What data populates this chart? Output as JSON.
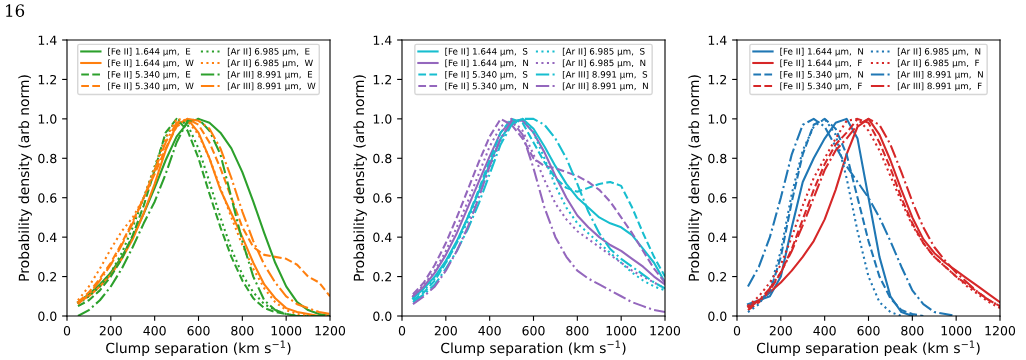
{
  "chart_data": [
    {
      "type": "line",
      "xlabel": "Clump separation (km s$^{−1}$)",
      "ylabel": "Probability density (arb norm)",
      "annotations": [
        "16"
      ],
      "xlim": [
        0,
        1200
      ],
      "ylim": [
        0,
        1.4
      ],
      "xticks": [
        0,
        200,
        400,
        600,
        800,
        1000,
        1200
      ],
      "yticks": [
        {
          "value": 0,
          "label": "0.0"
        },
        {
          "value": 0.2,
          "label": "0.2"
        },
        {
          "value": 0.4,
          "label": "0.4"
        },
        {
          "value": 0.6,
          "label": "0.6"
        },
        {
          "value": 0.8,
          "label": "0.8"
        },
        {
          "value": 1.0,
          "label": "1.0"
        },
        {
          "value": 1.2,
          "label": "1.2"
        },
        {
          "value": 1.4,
          "label": "1.4"
        }
      ],
      "legend": "top",
      "grid": false,
      "marker": "none",
      "x": [
        50,
        100,
        150,
        200,
        250,
        300,
        350,
        400,
        450,
        500,
        550,
        600,
        650,
        700,
        750,
        800,
        850,
        900,
        950,
        1000,
        1050,
        1100,
        1150,
        1200
      ],
      "series": [
        {
          "name": "[Fe II] 1.644 µm,  E",
          "color": "#2ca02c",
          "line_style": "solid",
          "values": [
            0.07,
            0.11,
            0.16,
            0.22,
            0.3,
            0.4,
            0.52,
            0.65,
            0.79,
            0.91,
            0.98,
            1.0,
            0.98,
            0.93,
            0.85,
            0.73,
            0.58,
            0.42,
            0.27,
            0.15,
            0.07,
            0.03,
            0.01,
            0.0
          ]
        },
        {
          "name": "[Fe II] 1.644 µm,  W",
          "color": "#ff7f0e",
          "line_style": "solid",
          "values": [
            0.07,
            0.1,
            0.15,
            0.21,
            0.29,
            0.39,
            0.52,
            0.67,
            0.84,
            0.97,
            1.0,
            0.93,
            0.8,
            0.64,
            0.52,
            0.4,
            0.27,
            0.16,
            0.09,
            0.04,
            0.02,
            0.01,
            0.0,
            0.0
          ]
        },
        {
          "name": "[Fe II] 5.340 µm,  E",
          "color": "#2ca02c",
          "line_style": "dashed",
          "values": [
            0.05,
            0.08,
            0.13,
            0.2,
            0.29,
            0.41,
            0.56,
            0.74,
            0.93,
            1.0,
            0.94,
            0.8,
            0.62,
            0.45,
            0.3,
            0.18,
            0.09,
            0.04,
            0.02,
            0.01,
            0.0,
            0.0,
            0.0,
            0.0
          ]
        },
        {
          "name": "[Fe II] 5.340 µm,  W",
          "color": "#ff7f0e",
          "line_style": "dashed",
          "values": [
            0.07,
            0.12,
            0.19,
            0.27,
            0.37,
            0.48,
            0.6,
            0.72,
            0.85,
            0.96,
            1.0,
            0.97,
            0.88,
            0.75,
            0.6,
            0.45,
            0.35,
            0.31,
            0.3,
            0.29,
            0.26,
            0.2,
            0.17,
            0.1
          ]
        },
        {
          "name": "[Ar II] 6.985 µm,  E",
          "color": "#2ca02c",
          "line_style": "dotted",
          "values": [
            0.06,
            0.1,
            0.15,
            0.22,
            0.32,
            0.45,
            0.6,
            0.76,
            0.91,
            1.0,
            0.97,
            0.85,
            0.68,
            0.5,
            0.34,
            0.21,
            0.12,
            0.06,
            0.03,
            0.01,
            0.0,
            0.0,
            0.0,
            0.0
          ]
        },
        {
          "name": "[Ar II] 6.985 µm,  W",
          "color": "#ff7f0e",
          "line_style": "dotted",
          "values": [
            0.08,
            0.15,
            0.24,
            0.34,
            0.43,
            0.5,
            0.6,
            0.75,
            0.9,
            1.0,
            0.99,
            0.92,
            0.8,
            0.65,
            0.5,
            0.36,
            0.24,
            0.14,
            0.07,
            0.03,
            0.01,
            0.0,
            0.0,
            0.0
          ]
        },
        {
          "name": "[Ar III] 8.991 µm,  E",
          "color": "#2ca02c",
          "line_style": "dashdot",
          "values": [
            0.0,
            0.03,
            0.08,
            0.15,
            0.24,
            0.35,
            0.47,
            0.58,
            0.72,
            0.88,
            0.99,
            1.0,
            0.94,
            0.82,
            0.6,
            0.38,
            0.2,
            0.08,
            0.03,
            0.01,
            0.0,
            0.0,
            0.0,
            0.0
          ]
        },
        {
          "name": "[Ar III] 8.991 µm,  W",
          "color": "#ff7f0e",
          "line_style": "dashdot",
          "values": [
            0.06,
            0.11,
            0.18,
            0.26,
            0.36,
            0.47,
            0.6,
            0.74,
            0.88,
            0.98,
            1.0,
            0.99,
            0.95,
            0.85,
            0.7,
            0.53,
            0.38,
            0.26,
            0.17,
            0.1,
            0.06,
            0.04,
            0.02,
            0.01
          ]
        }
      ]
    },
    {
      "type": "line",
      "xlabel": "Clump separation (km s$^{−1}$)",
      "ylabel": "Probability density (arb norm)",
      "xlim": [
        0,
        1200
      ],
      "ylim": [
        0,
        1.4
      ],
      "xticks": [
        0,
        200,
        400,
        600,
        800,
        1000,
        1200
      ],
      "yticks": [
        {
          "value": 0,
          "label": "0.0"
        },
        {
          "value": 0.2,
          "label": "0.2"
        },
        {
          "value": 0.4,
          "label": "0.4"
        },
        {
          "value": 0.6,
          "label": "0.6"
        },
        {
          "value": 0.8,
          "label": "0.8"
        },
        {
          "value": 1.0,
          "label": "1.0"
        },
        {
          "value": 1.2,
          "label": "1.2"
        },
        {
          "value": 1.4,
          "label": "1.4"
        }
      ],
      "legend": "top",
      "grid": false,
      "marker": "none",
      "x": [
        50,
        100,
        150,
        200,
        250,
        300,
        350,
        400,
        450,
        500,
        550,
        600,
        650,
        700,
        750,
        800,
        850,
        900,
        950,
        1000,
        1050,
        1100,
        1150,
        1200
      ],
      "series": [
        {
          "name": "[Fe II] 1.644 µm,  S",
          "color": "#17becf",
          "line_style": "solid",
          "values": [
            0.09,
            0.14,
            0.2,
            0.28,
            0.38,
            0.5,
            0.63,
            0.77,
            0.9,
            0.98,
            1.0,
            0.95,
            0.86,
            0.76,
            0.67,
            0.6,
            0.55,
            0.5,
            0.47,
            0.45,
            0.41,
            0.34,
            0.27,
            0.17
          ]
        },
        {
          "name": "[Fe II] 1.644 µm,  N",
          "color": "#9467bd",
          "line_style": "solid",
          "values": [
            0.1,
            0.15,
            0.22,
            0.31,
            0.42,
            0.55,
            0.68,
            0.81,
            0.93,
            0.99,
            0.99,
            0.93,
            0.83,
            0.71,
            0.6,
            0.51,
            0.45,
            0.4,
            0.36,
            0.33,
            0.29,
            0.25,
            0.2,
            0.16
          ]
        },
        {
          "name": "[Fe II] 5.340 µm,  S",
          "color": "#17becf",
          "line_style": "dashed",
          "values": [
            0.08,
            0.12,
            0.18,
            0.27,
            0.37,
            0.5,
            0.64,
            0.79,
            0.93,
            1.0,
            0.98,
            0.88,
            0.78,
            0.7,
            0.65,
            0.63,
            0.65,
            0.67,
            0.68,
            0.66,
            0.55,
            0.42,
            0.3,
            0.2
          ]
        },
        {
          "name": "[Fe II] 5.340 µm,  N",
          "color": "#9467bd",
          "line_style": "dashed",
          "values": [
            0.11,
            0.17,
            0.26,
            0.37,
            0.5,
            0.64,
            0.78,
            0.91,
            1.0,
            0.97,
            0.9,
            0.8,
            0.76,
            0.75,
            0.73,
            0.71,
            0.68,
            0.64,
            0.58,
            0.5,
            0.42,
            0.33,
            0.24,
            0.17
          ]
        },
        {
          "name": "[Ar II] 6.985 µm,  S",
          "color": "#17becf",
          "line_style": "dotted",
          "values": [
            0.09,
            0.13,
            0.19,
            0.27,
            0.37,
            0.48,
            0.61,
            0.75,
            0.89,
            0.98,
            1.0,
            0.93,
            0.8,
            0.66,
            0.55,
            0.47,
            0.42,
            0.37,
            0.32,
            0.27,
            0.22,
            0.18,
            0.15,
            0.13
          ]
        },
        {
          "name": "[Ar II] 6.985 µm,  N",
          "color": "#9467bd",
          "line_style": "dotted",
          "values": [
            0.1,
            0.16,
            0.23,
            0.33,
            0.45,
            0.58,
            0.72,
            0.86,
            0.96,
            1.0,
            0.94,
            0.82,
            0.69,
            0.57,
            0.49,
            0.43,
            0.39,
            0.35,
            0.31,
            0.27,
            0.23,
            0.2,
            0.17,
            0.14
          ]
        },
        {
          "name": "[Ar III] 8.991 µm,  S",
          "color": "#17becf",
          "line_style": "dashdot",
          "values": [
            0.07,
            0.11,
            0.16,
            0.24,
            0.33,
            0.44,
            0.57,
            0.72,
            0.87,
            0.97,
            1.0,
            1.0,
            0.97,
            0.9,
            0.8,
            0.67,
            0.53,
            0.42,
            0.34,
            0.29,
            0.25,
            0.21,
            0.17,
            0.14
          ]
        },
        {
          "name": "[Ar III] 8.991 µm,  N",
          "color": "#9467bd",
          "line_style": "dashdot",
          "values": [
            0.06,
            0.1,
            0.15,
            0.23,
            0.33,
            0.45,
            0.6,
            0.76,
            0.9,
            0.99,
            0.92,
            0.75,
            0.55,
            0.4,
            0.3,
            0.23,
            0.19,
            0.16,
            0.13,
            0.1,
            0.07,
            0.05,
            0.03,
            0.02
          ]
        }
      ]
    },
    {
      "type": "line",
      "xlabel": "Clump separation peak (km s$^{−1}$)",
      "ylabel": "Probability density (arb norm)",
      "xlim": [
        0,
        1200
      ],
      "ylim": [
        0,
        1.4
      ],
      "xticks": [
        0,
        200,
        400,
        600,
        800,
        1000,
        1200
      ],
      "yticks": [
        {
          "value": 0,
          "label": "0.0"
        },
        {
          "value": 0.2,
          "label": "0.2"
        },
        {
          "value": 0.4,
          "label": "0.4"
        },
        {
          "value": 0.6,
          "label": "0.6"
        },
        {
          "value": 0.8,
          "label": "0.8"
        },
        {
          "value": 1.0,
          "label": "1.0"
        },
        {
          "value": 1.2,
          "label": "1.2"
        },
        {
          "value": 1.4,
          "label": "1.4"
        }
      ],
      "legend": "top",
      "grid": false,
      "marker": "none",
      "x": [
        50,
        100,
        150,
        200,
        250,
        300,
        350,
        400,
        450,
        500,
        550,
        600,
        650,
        700,
        750,
        800,
        850,
        900,
        950,
        1000,
        1050,
        1100,
        1150,
        1200
      ],
      "series": [
        {
          "name": "[Fe II] 1.644 µm,  N",
          "color": "#1f77b4",
          "line_style": "solid",
          "values": [
            0.06,
            0.08,
            0.1,
            0.2,
            0.45,
            0.68,
            0.8,
            0.9,
            0.98,
            1.0,
            0.9,
            0.6,
            0.3,
            0.1,
            0.02,
            0.0,
            null,
            null,
            null,
            null,
            null,
            null,
            null,
            null
          ]
        },
        {
          "name": "[Fe II] 1.644 µm,  F",
          "color": "#d62728",
          "line_style": "solid",
          "values": [
            0.05,
            0.08,
            0.12,
            0.17,
            0.23,
            0.3,
            0.38,
            0.49,
            0.64,
            0.82,
            0.96,
            1.0,
            0.92,
            0.79,
            0.64,
            0.5,
            0.39,
            0.32,
            0.27,
            0.23,
            0.19,
            0.15,
            0.11,
            0.07
          ]
        },
        {
          "name": "[Fe II] 5.340 µm,  N",
          "color": "#1f77b4",
          "line_style": "dashed",
          "values": [
            0.05,
            0.07,
            0.12,
            0.3,
            0.58,
            0.82,
            0.97,
            1.0,
            0.95,
            0.82,
            0.6,
            0.38,
            0.2,
            0.09,
            0.03,
            0.01,
            0.0,
            null,
            null,
            null,
            null,
            null,
            null,
            null
          ]
        },
        {
          "name": "[Fe II] 5.340 µm,  F",
          "color": "#d62728",
          "line_style": "dashed",
          "values": [
            0.03,
            0.07,
            0.13,
            0.22,
            0.34,
            0.49,
            0.64,
            0.77,
            0.87,
            0.93,
            1.0,
            0.98,
            0.88,
            0.75,
            0.6,
            0.47,
            0.37,
            0.3,
            0.25,
            0.2,
            0.16,
            0.12,
            0.08,
            0.05
          ]
        },
        {
          "name": "[Ar II] 6.985 µm,  N",
          "color": "#1f77b4",
          "line_style": "dotted",
          "values": [
            0.02,
            0.06,
            0.14,
            0.33,
            0.62,
            0.84,
            0.96,
            1.0,
            0.92,
            0.7,
            0.43,
            0.2,
            0.07,
            0.02,
            0.0,
            null,
            null,
            null,
            null,
            null,
            null,
            null,
            null,
            null
          ]
        },
        {
          "name": "[Ar II] 6.985 µm,  F",
          "color": "#d62728",
          "line_style": "dotted",
          "values": [
            0.05,
            0.1,
            0.17,
            0.26,
            0.4,
            0.56,
            0.7,
            0.8,
            0.9,
            0.99,
            1.0,
            0.94,
            0.84,
            0.71,
            0.58,
            0.46,
            0.37,
            0.3,
            0.25,
            0.2,
            0.15,
            0.11,
            0.07,
            0.04
          ]
        },
        {
          "name": "[Ar III] 8.991 µm,  N",
          "color": "#1f77b4",
          "line_style": "dashdot",
          "values": [
            0.15,
            0.25,
            0.4,
            0.6,
            0.82,
            0.97,
            1.0,
            0.96,
            0.86,
            0.76,
            0.68,
            0.6,
            0.5,
            0.38,
            0.25,
            0.13,
            0.06,
            0.02,
            0.01,
            0.0,
            null,
            null,
            null,
            null
          ]
        },
        {
          "name": "[Ar III] 8.991 µm,  F",
          "color": "#d62728",
          "line_style": "dashdot",
          "values": [
            0.04,
            0.08,
            0.14,
            0.22,
            0.33,
            0.46,
            0.6,
            0.74,
            0.84,
            0.9,
            0.97,
            1.0,
            0.97,
            0.87,
            0.73,
            0.58,
            0.45,
            0.35,
            0.28,
            0.22,
            0.17,
            0.12,
            0.08,
            0.05
          ]
        }
      ]
    }
  ]
}
